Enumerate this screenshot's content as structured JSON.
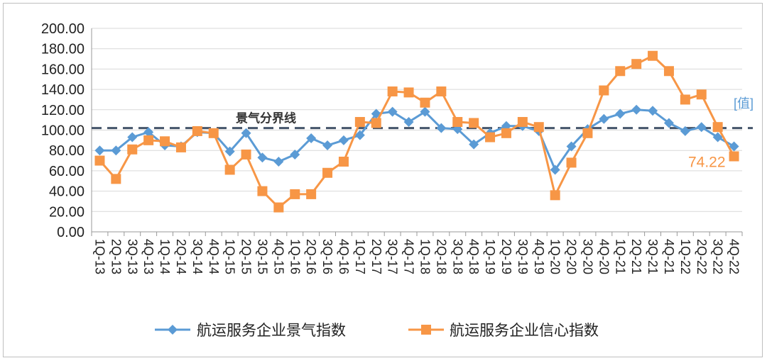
{
  "chart_data": {
    "type": "line",
    "title": "",
    "xlabel": "",
    "ylabel": "",
    "ylim": [
      0,
      200
    ],
    "y_ticks": [
      "0.00",
      "20.00",
      "40.00",
      "60.00",
      "80.00",
      "100.00",
      "120.00",
      "140.00",
      "160.00",
      "180.00",
      "200.00"
    ],
    "categories": [
      "1Q-13",
      "2Q-13",
      "3Q-13",
      "4Q-13",
      "1Q-14",
      "2Q-14",
      "3Q-14",
      "4Q-14",
      "1Q-15",
      "2Q-15",
      "3Q-15",
      "4Q-15",
      "1Q-16",
      "2Q-16",
      "3Q-16",
      "4Q-16",
      "1Q-17",
      "2Q-17",
      "3Q-17",
      "4Q-17",
      "1Q-18",
      "2Q-18",
      "3Q-18",
      "4Q-18",
      "1Q-19",
      "2Q-19",
      "3Q-19",
      "4Q-19",
      "1Q-20",
      "2Q-20",
      "3Q-20",
      "4Q-20",
      "1Q-21",
      "2Q-21",
      "3Q-21",
      "4Q-21",
      "1Q-22",
      "2Q-22",
      "3Q-22",
      "4Q-22"
    ],
    "series": [
      {
        "name": "航运服务企业景气指数",
        "color": "#5b9bd5",
        "marker": "diamond",
        "values": [
          80,
          80,
          93,
          98,
          85,
          84,
          98,
          97,
          79,
          97,
          73,
          69,
          76,
          92,
          85,
          90,
          95,
          116,
          118,
          108,
          118,
          102,
          101,
          86,
          97,
          104,
          104,
          99,
          61,
          84,
          101,
          111,
          116,
          120,
          119,
          107,
          99,
          103,
          93,
          84
        ]
      },
      {
        "name": "航运服务企业信心指数",
        "color": "#f79646",
        "marker": "square",
        "values": [
          70,
          52,
          81,
          90,
          89,
          83,
          99,
          97,
          61,
          76,
          40,
          24,
          37,
          37,
          58,
          69,
          108,
          107,
          138,
          137,
          127,
          138,
          108,
          107,
          93,
          97,
          108,
          103,
          36,
          68,
          97,
          139,
          158,
          165,
          173,
          158,
          130,
          135,
          103,
          74.22
        ]
      }
    ],
    "reference_line": {
      "value": 102,
      "label": "景气分界线",
      "color": "#44546a"
    },
    "annotations": {
      "value_placeholder": "[值]",
      "last_value_label": "74.22"
    },
    "legend_position": "bottom",
    "grid": true
  }
}
